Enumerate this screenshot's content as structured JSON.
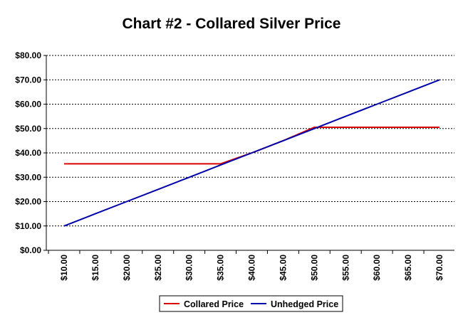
{
  "chart_data": {
    "type": "line",
    "title": "Chart #2 - Collared Silver Price",
    "xlabel": "",
    "ylabel": "",
    "x": [
      10,
      15,
      20,
      25,
      30,
      35,
      40,
      45,
      50,
      55,
      60,
      65,
      70
    ],
    "x_tick_labels": [
      "$10.00",
      "$15.00",
      "$20.00",
      "$25.00",
      "$30.00",
      "$35.00",
      "$40.00",
      "$45.00",
      "$50.00",
      "$55.00",
      "$60.00",
      "$65.00",
      "$70.00"
    ],
    "y_tick_labels": [
      "$0.00",
      "$10.00",
      "$20.00",
      "$30.00",
      "$40.00",
      "$50.00",
      "$60.00",
      "$70.00",
      "$80.00"
    ],
    "ylim": [
      0,
      80
    ],
    "grid": true,
    "legend_position": "bottom",
    "series": [
      {
        "name": "Collared Price",
        "color": "#dd0000",
        "values": [
          35.5,
          35.5,
          35.5,
          35.5,
          35.5,
          35.5,
          40,
          45,
          50.5,
          50.5,
          50.5,
          50.5,
          50.5
        ]
      },
      {
        "name": "Unhedged Price",
        "color": "#0000aa",
        "values": [
          10,
          15,
          20,
          25,
          30,
          35,
          40,
          45,
          50,
          55,
          60,
          65,
          70
        ]
      }
    ]
  }
}
